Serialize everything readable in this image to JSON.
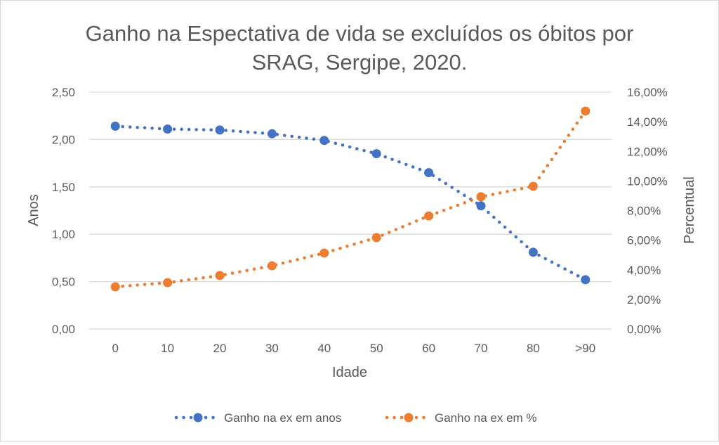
{
  "chart_data": {
    "type": "line",
    "title_lines": [
      "Ganho na Espectativa de vida se excluídos os óbitos por",
      "SRAG, Sergipe, 2020."
    ],
    "xlabel": "Idade",
    "ylabel": "Anos",
    "y2label": "Percentual",
    "categories": [
      "0",
      "10",
      "20",
      "30",
      "40",
      "50",
      "60",
      "70",
      "80",
      ">90"
    ],
    "ylim": [
      0,
      2.5
    ],
    "y_ticks": [
      "0,00",
      "0,50",
      "1,00",
      "1,50",
      "2,00",
      "2,50"
    ],
    "y2lim": [
      0,
      16
    ],
    "y2_ticks": [
      "0,00%",
      "2,00%",
      "4,00%",
      "6,00%",
      "8,00%",
      "10,00%",
      "12,00%",
      "14,00%",
      "16,00%"
    ],
    "grid": true,
    "legend_position": "bottom",
    "series": [
      {
        "name": "Ganho na ex em anos",
        "axis": "left",
        "color": "#4472C4",
        "style": "dotted-with-markers",
        "values": [
          2.14,
          2.11,
          2.1,
          2.06,
          1.99,
          1.85,
          1.65,
          1.3,
          0.81,
          0.52
        ]
      },
      {
        "name": "Ganho na ex em %",
        "axis": "right",
        "color": "#ED7D31",
        "style": "dotted-with-markers",
        "values": [
          2.85,
          3.13,
          3.61,
          4.27,
          5.13,
          6.17,
          7.64,
          8.93,
          9.64,
          14.72
        ]
      }
    ]
  }
}
